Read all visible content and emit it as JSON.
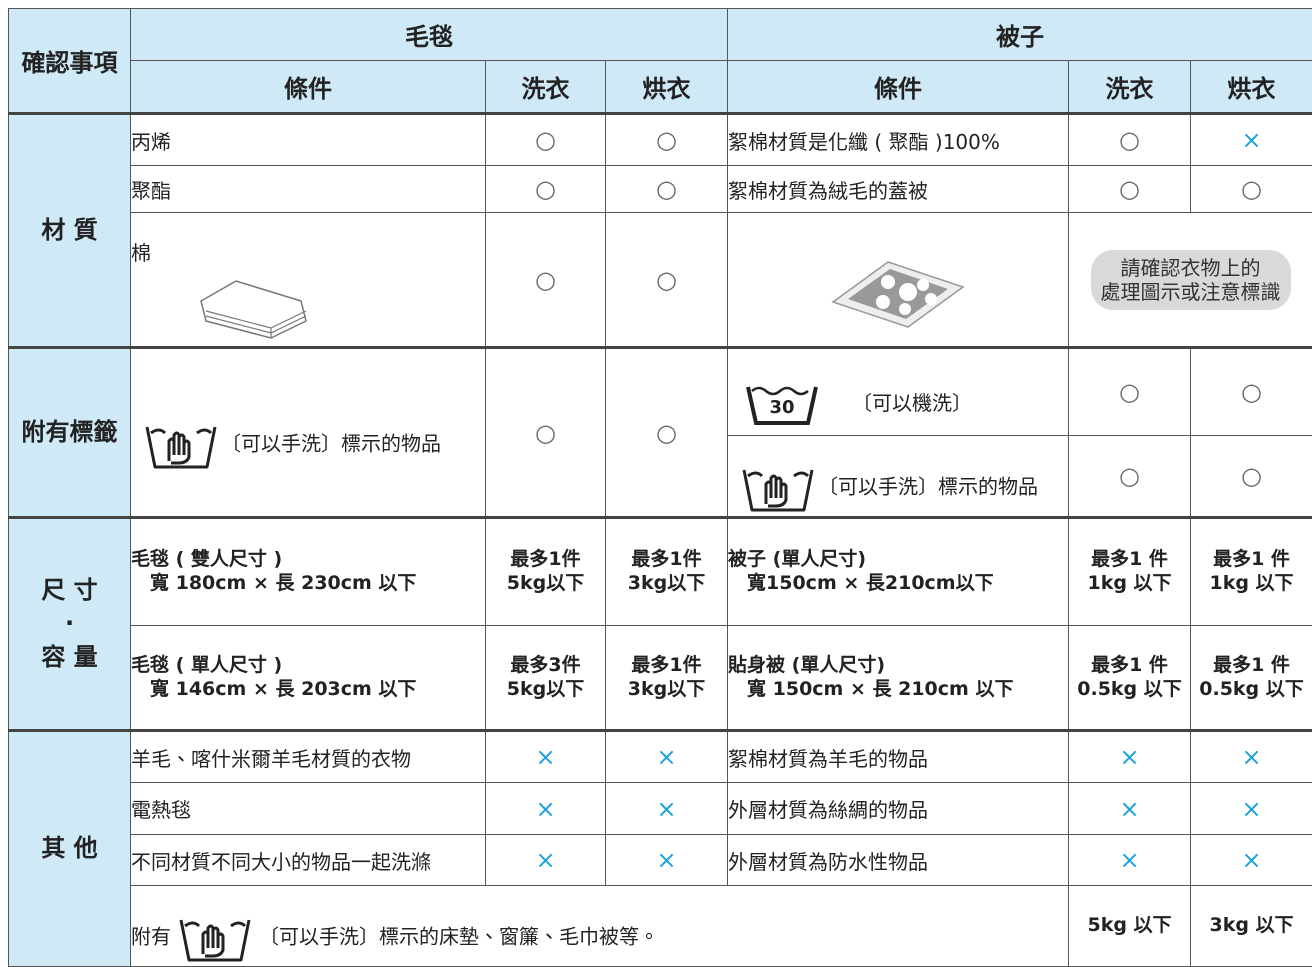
{
  "table": {
    "header": [
      "確認事項",
      "毛毯",
      "被子"
    ],
    "subheader": [
      "條件",
      "洗衣",
      "烘衣",
      "條件",
      "洗衣",
      "烘衣"
    ],
    "groups": [
      "材 質",
      "附有標籤",
      "尺 寸\n·\n容 量",
      "其 他"
    ],
    "rows": [
      [
        "丙烯",
        "○",
        "○",
        "絮棉材質是化纖 ( 聚酯 )100%",
        "○",
        "×"
      ],
      [
        "聚酯",
        "○",
        "○",
        "絮棉材質為絨毛的蓋被",
        "○",
        "○"
      ],
      [
        "棉",
        "○",
        "○",
        "請確認衣物上的\n處理圖示或注意標識"
      ],
      [
        "〔可以手洗〕標示的物品",
        "○",
        "○",
        "30",
        "〔可以機洗〕",
        "○",
        "○"
      ],
      [
        "〔可以手洗〕標示的物品",
        "○",
        "○"
      ],
      [
        "毛毯 ( 雙人尺寸 )\n　寬 180cm × 長 230cm 以下",
        "最多1件\n5kg以下",
        "最多1件\n3kg以下",
        "被子 (單人尺寸)\n　寬150cm × 長210cm以下",
        "最多1 件\n1kg 以下",
        "最多1 件\n1kg 以下"
      ],
      [
        "毛毯 ( 單人尺寸 )\n　寬 146cm × 長 203cm 以下",
        "最多3件\n5kg以下",
        "最多1件\n3kg以下",
        "貼身被 (單人尺寸)\n　寬 150cm × 長 210cm 以下",
        "最多1 件\n0.5kg 以下",
        "最多1 件\n0.5kg 以下"
      ],
      [
        "羊毛、喀什米爾羊毛材質的衣物",
        "×",
        "×",
        "絮棉材質為羊毛的物品",
        "×",
        "×"
      ],
      [
        "電熱毯",
        "×",
        "×",
        "外層材質為絲綢的物品",
        "×",
        "×"
      ],
      [
        "不同材質不同大小的物品一起洗滌",
        "×",
        "×",
        "外層材質為防水性物品",
        "×",
        "×"
      ],
      [
        "附有",
        "〔可以手洗〕標示的床墊、窗簾、毛巾被等。",
        "5kg 以下",
        "3kg 以下"
      ]
    ]
  }
}
